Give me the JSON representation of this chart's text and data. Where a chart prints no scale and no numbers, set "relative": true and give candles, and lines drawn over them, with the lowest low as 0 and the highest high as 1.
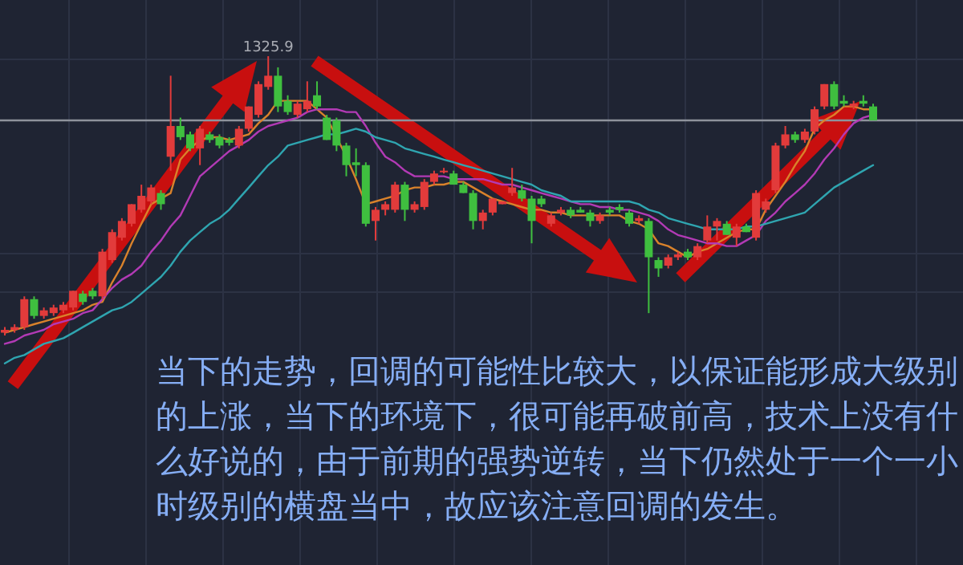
{
  "chart_data": {
    "type": "candlestick",
    "relative": true,
    "grid": true,
    "categories": [
      null,
      null,
      null,
      null,
      null,
      null,
      null,
      null,
      null,
      null,
      null,
      null,
      null,
      null,
      null,
      null,
      null,
      null,
      null,
      null,
      null,
      null,
      null,
      null,
      null,
      null,
      null,
      null,
      null,
      null,
      null,
      null,
      null,
      null,
      null,
      null,
      null,
      null,
      null,
      null,
      null,
      null,
      null,
      null,
      null,
      null,
      null,
      null,
      null,
      null,
      null,
      null,
      null,
      null,
      null,
      null,
      null,
      null,
      null,
      null,
      null,
      null,
      null,
      null,
      null,
      null,
      null,
      null,
      null,
      null,
      null,
      null,
      null,
      null,
      null,
      null,
      null,
      null,
      null,
      null,
      null,
      null,
      null,
      null,
      null,
      null,
      null,
      null,
      null,
      null
    ],
    "ohlc": [
      [
        0.01,
        0.03,
        0,
        0.02
      ],
      [
        0.02,
        0.04,
        0.01,
        0.03
      ],
      [
        0.03,
        0.14,
        0.02,
        0.13
      ],
      [
        0.13,
        0.14,
        0.06,
        0.07
      ],
      [
        0.07,
        0.1,
        0.06,
        0.09
      ],
      [
        0.08,
        0.11,
        0.07,
        0.1
      ],
      [
        0.09,
        0.12,
        0.08,
        0.11
      ],
      [
        0.1,
        0.16,
        0.09,
        0.16
      ],
      [
        0.15,
        0.16,
        0.11,
        0.12
      ],
      [
        0.16,
        0.17,
        0.13,
        0.14
      ],
      [
        0.14,
        0.31,
        0.13,
        0.3
      ],
      [
        0.27,
        0.38,
        0.26,
        0.37
      ],
      [
        0.35,
        0.42,
        0.34,
        0.41
      ],
      [
        0.4,
        0.47,
        0.39,
        0.47
      ],
      [
        0.45,
        0.54,
        0.44,
        0.5
      ],
      [
        0.48,
        0.54,
        0.47,
        0.53
      ],
      [
        0.51,
        0.52,
        0.45,
        0.47
      ],
      [
        0.64,
        0.93,
        0.59,
        0.75
      ],
      [
        0.75,
        0.78,
        0.7,
        0.71
      ],
      [
        0.72,
        0.73,
        0.66,
        0.67
      ],
      [
        0.67,
        0.75,
        0.61,
        0.74
      ],
      [
        0.72,
        0.73,
        0.69,
        0.7
      ],
      [
        0.71,
        0.72,
        0.67,
        0.68
      ],
      [
        0.7,
        0.71,
        0.68,
        0.69
      ],
      [
        0.68,
        0.75,
        0.67,
        0.74
      ],
      [
        0.74,
        0.82,
        0.73,
        0.82
      ],
      [
        0.79,
        0.91,
        0.78,
        0.9
      ],
      [
        0.89,
        1.0,
        0.88,
        0.93
      ],
      [
        0.93,
        0.96,
        0.8,
        0.82
      ],
      [
        0.84,
        0.86,
        0.79,
        0.8
      ],
      [
        0.79,
        0.84,
        0.78,
        0.83
      ],
      [
        0.81,
        0.91,
        0.8,
        0.84
      ],
      [
        0.86,
        0.91,
        0.81,
        0.82
      ],
      [
        0.78,
        0.79,
        0.7,
        0.7
      ],
      [
        0.77,
        0.78,
        0.66,
        0.68
      ],
      [
        0.68,
        0.69,
        0.57,
        0.61
      ],
      [
        0.62,
        0.67,
        0.57,
        0.61
      ],
      [
        0.61,
        0.62,
        0.39,
        0.4
      ],
      [
        0.41,
        0.46,
        0.34,
        0.45
      ],
      [
        0.45,
        0.48,
        0.43,
        0.47
      ],
      [
        0.45,
        0.55,
        0.44,
        0.54
      ],
      [
        0.54,
        0.55,
        0.41,
        0.45
      ],
      [
        0.45,
        0.48,
        0.44,
        0.47
      ],
      [
        0.46,
        0.56,
        0.45,
        0.55
      ],
      [
        0.55,
        0.59,
        0.54,
        0.58
      ],
      [
        0.59,
        0.6,
        0.58,
        0.59
      ],
      [
        0.58,
        0.59,
        0.54,
        0.54
      ],
      [
        0.54,
        0.55,
        0.51,
        0.51
      ],
      [
        0.51,
        0.52,
        0.38,
        0.41
      ],
      [
        0.41,
        0.45,
        0.38,
        0.44
      ],
      [
        0.44,
        0.49,
        0.43,
        0.49
      ],
      [
        0.47,
        0.48,
        0.47,
        0.48
      ],
      [
        0.51,
        0.6,
        0.5,
        0.53
      ],
      [
        0.52,
        0.54,
        0.48,
        0.49
      ],
      [
        0.49,
        0.5,
        0.33,
        0.41
      ],
      [
        0.49,
        0.5,
        0.46,
        0.47
      ],
      [
        0.4,
        0.44,
        0.39,
        0.43
      ],
      [
        0.44,
        0.46,
        0.43,
        0.45
      ],
      [
        0.45,
        0.46,
        0.42,
        0.43
      ],
      [
        0.45,
        0.46,
        0.44,
        0.44
      ],
      [
        0.44,
        0.45,
        0.39,
        0.41
      ],
      [
        0.41,
        0.44,
        0.4,
        0.43
      ],
      [
        0.45,
        0.46,
        0.43,
        0.44
      ],
      [
        0.46,
        0.47,
        0.44,
        0.45
      ],
      [
        0.44,
        0.45,
        0.39,
        0.4
      ],
      [
        0.41,
        0.43,
        0.4,
        0.42
      ],
      [
        0.41,
        0.42,
        0.08,
        0.28
      ],
      [
        0.27,
        0.28,
        0.21,
        0.24
      ],
      [
        0.25,
        0.29,
        0.24,
        0.28
      ],
      [
        0.28,
        0.3,
        0.27,
        0.29
      ],
      [
        0.3,
        0.31,
        0.27,
        0.28
      ],
      [
        0.28,
        0.33,
        0.27,
        0.32
      ],
      [
        0.34,
        0.43,
        0.33,
        0.39
      ],
      [
        0.39,
        0.42,
        0.34,
        0.41
      ],
      [
        0.4,
        0.41,
        0.36,
        0.36
      ],
      [
        0.35,
        0.4,
        0.32,
        0.39
      ],
      [
        0.39,
        0.4,
        0.37,
        0.37
      ],
      [
        0.35,
        0.52,
        0.34,
        0.51
      ],
      [
        0.45,
        0.49,
        0.44,
        0.48
      ],
      [
        0.52,
        0.69,
        0.51,
        0.68
      ],
      [
        0.68,
        0.75,
        0.67,
        0.72
      ],
      [
        0.72,
        0.73,
        0.69,
        0.7
      ],
      [
        0.7,
        0.74,
        0.69,
        0.73
      ],
      [
        0.73,
        0.82,
        0.72,
        0.81
      ],
      [
        0.82,
        0.9,
        0.81,
        0.9
      ],
      [
        0.9,
        0.91,
        0.81,
        0.82
      ],
      [
        0.84,
        0.86,
        0.82,
        0.83
      ],
      [
        0.82,
        0.84,
        0.81,
        0.83
      ],
      [
        0.84,
        0.86,
        0.82,
        0.83
      ],
      [
        0.82,
        0.83,
        0.77,
        0.77
      ]
    ],
    "series": [
      {
        "type": "line",
        "color": "#d9822b",
        "values": [
          0.01,
          0.02,
          0.03,
          0.04,
          0.05,
          0.06,
          0.07,
          0.08,
          0.09,
          0.11,
          0.12,
          0.19,
          0.25,
          0.33,
          0.4,
          0.47,
          0.49,
          0.51,
          0.63,
          0.67,
          0.7,
          0.71,
          0.71,
          0.7,
          0.71,
          0.72,
          0.76,
          0.79,
          0.84,
          0.84,
          0.84,
          0.84,
          0.81,
          0.78,
          0.71,
          0.64,
          0.56,
          0.47,
          0.48,
          0.49,
          0.5,
          0.52,
          0.53,
          0.53,
          0.54,
          0.54,
          0.55,
          0.55,
          0.53,
          0.51,
          0.49,
          0.48,
          0.47,
          0.46,
          0.45,
          0.45,
          0.44,
          0.44,
          0.43,
          0.43,
          0.43,
          0.43,
          0.43,
          0.43,
          0.41,
          0.4,
          0.38,
          0.33,
          0.32,
          0.3,
          0.28,
          0.3,
          0.31,
          0.33,
          0.35,
          0.37,
          0.38,
          0.38,
          0.45,
          0.5,
          0.55,
          0.61,
          0.66,
          0.74,
          0.77,
          0.79,
          0.82,
          0.82,
          0.81,
          0.81
        ]
      },
      {
        "type": "line",
        "color": "#b23ab5",
        "values": [
          -0.03,
          -0.02,
          0.0,
          0.01,
          0.02,
          0.04,
          0.05,
          0.06,
          0.08,
          0.09,
          0.13,
          0.17,
          0.2,
          0.22,
          0.25,
          0.3,
          0.34,
          0.39,
          0.43,
          0.5,
          0.57,
          0.6,
          0.63,
          0.66,
          0.68,
          0.7,
          0.73,
          0.75,
          0.76,
          0.77,
          0.78,
          0.8,
          0.81,
          0.81,
          0.81,
          0.8,
          0.8,
          0.75,
          0.69,
          0.64,
          0.62,
          0.59,
          0.57,
          0.57,
          0.57,
          0.57,
          0.56,
          0.56,
          0.56,
          0.56,
          0.55,
          0.54,
          0.54,
          0.53,
          0.52,
          0.51,
          0.5,
          0.49,
          0.48,
          0.47,
          0.47,
          0.46,
          0.46,
          0.45,
          0.45,
          0.44,
          0.43,
          0.41,
          0.38,
          0.36,
          0.35,
          0.34,
          0.33,
          0.33,
          0.32,
          0.32,
          0.34,
          0.36,
          0.41,
          0.44,
          0.48,
          0.51,
          0.54,
          0.58,
          0.63,
          0.67,
          0.72,
          0.76,
          0.78,
          0.79
        ]
      },
      {
        "type": "line",
        "color": "#2fa5b0",
        "values": [
          -0.1,
          -0.08,
          -0.07,
          -0.05,
          -0.03,
          -0.02,
          -0.01,
          0.01,
          0.03,
          0.05,
          0.07,
          0.09,
          0.1,
          0.12,
          0.15,
          0.18,
          0.21,
          0.25,
          0.3,
          0.34,
          0.37,
          0.4,
          0.42,
          0.45,
          0.49,
          0.53,
          0.57,
          0.61,
          0.64,
          0.68,
          0.69,
          0.7,
          0.71,
          0.72,
          0.72,
          0.73,
          0.74,
          0.73,
          0.71,
          0.7,
          0.69,
          0.67,
          0.66,
          0.65,
          0.64,
          0.63,
          0.62,
          0.61,
          0.6,
          0.59,
          0.58,
          0.57,
          0.56,
          0.55,
          0.54,
          0.52,
          0.51,
          0.5,
          0.48,
          0.48,
          0.48,
          0.48,
          0.48,
          0.48,
          0.48,
          0.47,
          0.45,
          0.44,
          0.42,
          0.41,
          0.4,
          0.39,
          0.38,
          0.38,
          0.38,
          0.38,
          0.39,
          0.39,
          0.4,
          0.41,
          0.42,
          0.43,
          0.44,
          0.47,
          0.5,
          0.53,
          0.55,
          0.57,
          0.59,
          0.61
        ]
      }
    ],
    "ref_lines": [
      {
        "axis": "y",
        "value": 0.77,
        "color": "#8e929c"
      }
    ],
    "annotations": [
      {
        "text": "1325.9",
        "y": 1.0
      },
      "当下的走势，回调的可能性比较大，以保证能形成大级别的上涨，当下的环境下，很可能再破前高，技术上没有什么好说的，由于前期的强势逆转，当下仍然处于一个一小时级别的横盘当中，故应该注意回调的发生。"
    ]
  }
}
